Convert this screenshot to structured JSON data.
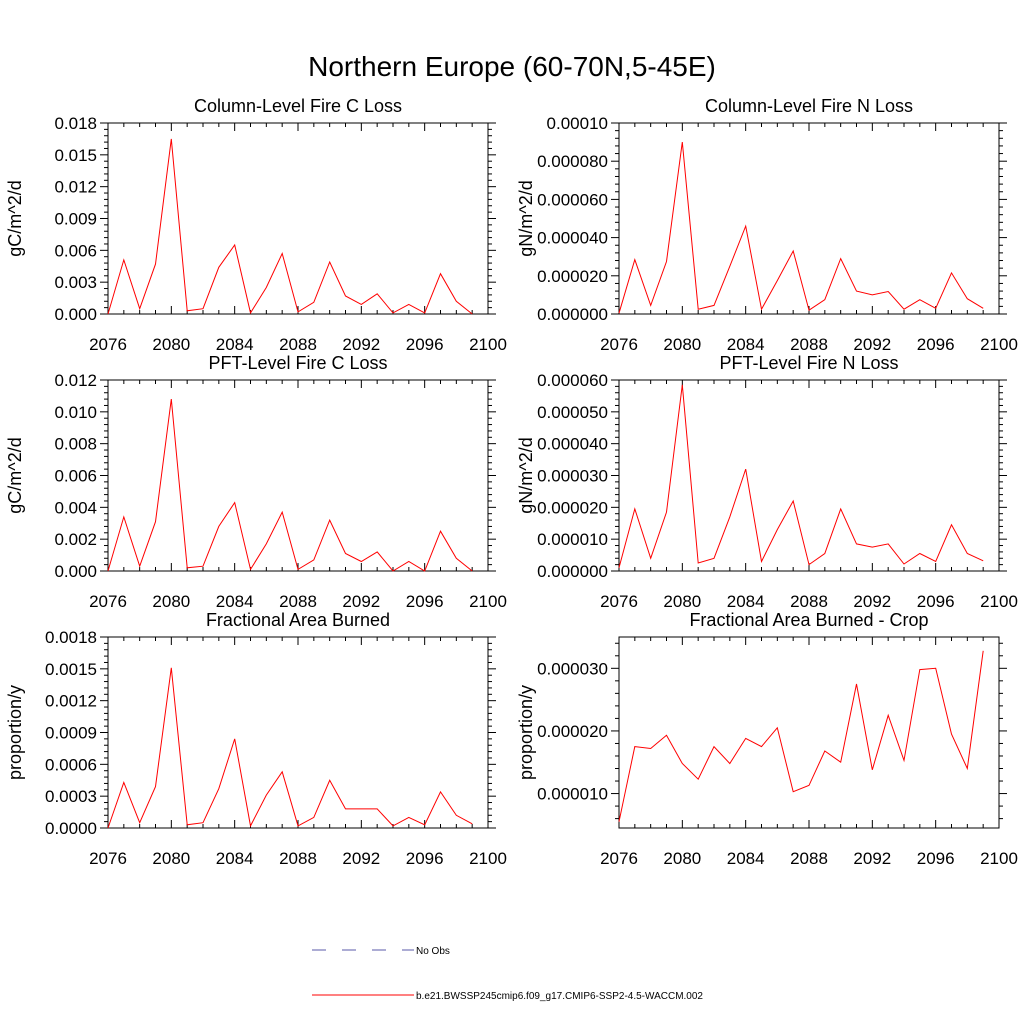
{
  "title": "Northern Europe (60-70N,5-45E)",
  "legend": {
    "placement": "bottom-center",
    "entries": [
      {
        "label": "No Obs",
        "color": "#5a5aa8",
        "style": "dashed"
      },
      {
        "label": "b.e21.BWSSP245cmip6.f09_g17.CMIP6-SSP2-4.5-WACCM.002",
        "color": "#ff0000",
        "style": "solid"
      }
    ]
  },
  "chart_data": [
    {
      "type": "line",
      "title": "Column-Level Fire C Loss",
      "ylabel": "gC/m^2/d",
      "xlim": [
        2076,
        2100
      ],
      "ylim": [
        0,
        0.018
      ],
      "xticks": [
        "2076",
        "2080",
        "2084",
        "2088",
        "2092",
        "2096",
        "2100"
      ],
      "yticks": [
        "0.000",
        "0.003",
        "0.006",
        "0.009",
        "0.012",
        "0.015",
        "0.018"
      ],
      "x": [
        2076,
        2077,
        2078,
        2079,
        2080,
        2081,
        2082,
        2083,
        2084,
        2085,
        2086,
        2087,
        2088,
        2089,
        2090,
        2091,
        2092,
        2093,
        2094,
        2095,
        2096,
        2097,
        2098,
        2099
      ],
      "series": [
        {
          "name": "b.e21.BWSSP245cmip6.f09_g17.CMIP6-SSP2-4.5-WACCM.002",
          "color": "#ff0000",
          "values": [
            0.0,
            0.0051,
            0.0005,
            0.0047,
            0.0165,
            0.0003,
            0.0005,
            0.0044,
            0.0065,
            0.0001,
            0.0025,
            0.0057,
            0.0002,
            0.0011,
            0.0049,
            0.0017,
            0.0009,
            0.0019,
            0.0001,
            0.0009,
            0.0001,
            0.0038,
            0.0012,
            0.0
          ]
        }
      ]
    },
    {
      "type": "line",
      "title": "Column-Level Fire N Loss",
      "ylabel": "gN/m^2/d",
      "xlim": [
        2076,
        2100
      ],
      "ylim": [
        0,
        0.0001
      ],
      "xticks": [
        "2076",
        "2080",
        "2084",
        "2088",
        "2092",
        "2096",
        "2100"
      ],
      "yticks": [
        "0.000000",
        "0.000020",
        "0.000040",
        "0.000060",
        "0.000080",
        "0.00010"
      ],
      "x": [
        2076,
        2077,
        2078,
        2079,
        2080,
        2081,
        2082,
        2083,
        2084,
        2085,
        2086,
        2087,
        2088,
        2089,
        2090,
        2091,
        2092,
        2093,
        2094,
        2095,
        2096,
        2097,
        2098,
        2099
      ],
      "series": [
        {
          "name": "b.e21.BWSSP245cmip6.f09_g17.CMIP6-SSP2-4.5-WACCM.002",
          "color": "#ff0000",
          "values": [
            4e-07,
            2.85e-05,
            4.5e-06,
            2.75e-05,
            9e-05,
            2.5e-06,
            4.5e-06,
            2.5e-05,
            4.6e-05,
            2.5e-06,
            1.75e-05,
            3.3e-05,
            2e-06,
            7.5e-06,
            2.9e-05,
            1.2e-05,
            1e-05,
            1.18e-05,
            2.5e-06,
            7.5e-06,
            3e-06,
            2.15e-05,
            8e-06,
            3e-06
          ]
        }
      ]
    },
    {
      "type": "line",
      "title": "PFT-Level Fire C Loss",
      "ylabel": "gC/m^2/d",
      "xlim": [
        2076,
        2100
      ],
      "ylim": [
        0,
        0.012
      ],
      "xticks": [
        "2076",
        "2080",
        "2084",
        "2088",
        "2092",
        "2096",
        "2100"
      ],
      "yticks": [
        "0.000",
        "0.002",
        "0.004",
        "0.006",
        "0.008",
        "0.010",
        "0.012"
      ],
      "x": [
        2076,
        2077,
        2078,
        2079,
        2080,
        2081,
        2082,
        2083,
        2084,
        2085,
        2086,
        2087,
        2088,
        2089,
        2090,
        2091,
        2092,
        2093,
        2094,
        2095,
        2096,
        2097,
        2098,
        2099
      ],
      "series": [
        {
          "name": "b.e21.BWSSP245cmip6.f09_g17.CMIP6-SSP2-4.5-WACCM.002",
          "color": "#ff0000",
          "values": [
            0.0,
            0.0034,
            0.0003,
            0.0031,
            0.0108,
            0.0002,
            0.0003,
            0.0028,
            0.0043,
            0.0001,
            0.0017,
            0.0037,
            0.0001,
            0.0007,
            0.0032,
            0.0011,
            0.0006,
            0.0012,
            0.0,
            0.0006,
            0.0,
            0.0025,
            0.0008,
            0.0
          ]
        }
      ]
    },
    {
      "type": "line",
      "title": "PFT-Level Fire N Loss",
      "ylabel": "gN/m^2/d",
      "xlim": [
        2076,
        2100
      ],
      "ylim": [
        0,
        6e-05
      ],
      "xticks": [
        "2076",
        "2080",
        "2084",
        "2088",
        "2092",
        "2096",
        "2100"
      ],
      "yticks": [
        "0.000000",
        "0.000010",
        "0.000020",
        "0.000030",
        "0.000040",
        "0.000050",
        "0.000060"
      ],
      "x": [
        2076,
        2077,
        2078,
        2079,
        2080,
        2081,
        2082,
        2083,
        2084,
        2085,
        2086,
        2087,
        2088,
        2089,
        2090,
        2091,
        2092,
        2093,
        2094,
        2095,
        2096,
        2097,
        2098,
        2099
      ],
      "series": [
        {
          "name": "b.e21.BWSSP245cmip6.f09_g17.CMIP6-SSP2-4.5-WACCM.002",
          "color": "#ff0000",
          "values": [
            1e-06,
            1.95e-05,
            4e-06,
            1.85e-05,
            5.85e-05,
            2.5e-06,
            4e-06,
            1.7e-05,
            3.2e-05,
            3e-06,
            1.3e-05,
            2.2e-05,
            2e-06,
            5.5e-06,
            1.95e-05,
            8.5e-06,
            7.5e-06,
            8.5e-06,
            2.2e-06,
            5.5e-06,
            3e-06,
            1.45e-05,
            5.5e-06,
            3.2e-06
          ]
        }
      ]
    },
    {
      "type": "line",
      "title": "Fractional Area Burned",
      "ylabel": "proportion/y",
      "xlim": [
        2076,
        2100
      ],
      "ylim": [
        0,
        0.0018
      ],
      "xticks": [
        "2076",
        "2080",
        "2084",
        "2088",
        "2092",
        "2096",
        "2100"
      ],
      "yticks": [
        "0.0000",
        "0.0003",
        "0.0006",
        "0.0009",
        "0.0012",
        "0.0015",
        "0.0018"
      ],
      "x": [
        2076,
        2077,
        2078,
        2079,
        2080,
        2081,
        2082,
        2083,
        2084,
        2085,
        2086,
        2087,
        2088,
        2089,
        2090,
        2091,
        2092,
        2093,
        2094,
        2095,
        2096,
        2097,
        2098,
        2099
      ],
      "series": [
        {
          "name": "b.e21.BWSSP245cmip6.f09_g17.CMIP6-SSP2-4.5-WACCM.002",
          "color": "#ff0000",
          "values": [
            0.0,
            0.00043,
            5e-05,
            0.00039,
            0.00151,
            3e-05,
            5e-05,
            0.00037,
            0.00084,
            2e-05,
            0.00031,
            0.00053,
            2e-05,
            0.0001,
            0.00045,
            0.00018,
            0.00018,
            0.00018,
            2e-05,
            0.0001,
            3e-05,
            0.00034,
            0.00012,
            4e-05
          ]
        }
      ]
    },
    {
      "type": "line",
      "title": "Fractional Area Burned - Crop",
      "ylabel": "proportion/y",
      "xlim": [
        2076,
        2100
      ],
      "ylim": [
        4.5e-06,
        3.5e-05
      ],
      "xticks": [
        "2076",
        "2080",
        "2084",
        "2088",
        "2092",
        "2096",
        "2100"
      ],
      "yticks": [
        "0.000010",
        "0.000020",
        "0.000030"
      ],
      "ytick_values": [
        1e-05,
        2e-05,
        3e-05
      ],
      "x": [
        2076,
        2077,
        2078,
        2079,
        2080,
        2081,
        2082,
        2083,
        2084,
        2085,
        2086,
        2087,
        2088,
        2089,
        2090,
        2091,
        2092,
        2093,
        2094,
        2095,
        2096,
        2097,
        2098,
        2099
      ],
      "series": [
        {
          "name": "b.e21.BWSSP245cmip6.f09_g17.CMIP6-SSP2-4.5-WACCM.002",
          "color": "#ff0000",
          "values": [
            5.5e-06,
            1.75e-05,
            1.72e-05,
            1.93e-05,
            1.48e-05,
            1.23e-05,
            1.75e-05,
            1.48e-05,
            1.88e-05,
            1.75e-05,
            2.05e-05,
            1.03e-05,
            1.13e-05,
            1.68e-05,
            1.5e-05,
            2.75e-05,
            1.38e-05,
            2.25e-05,
            1.53e-05,
            2.98e-05,
            3e-05,
            1.95e-05,
            1.4e-05,
            3.28e-05
          ]
        }
      ]
    }
  ]
}
